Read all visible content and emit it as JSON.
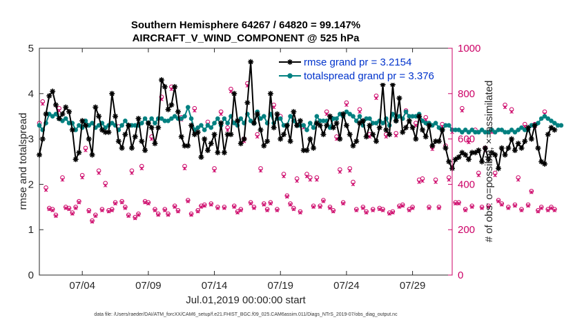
{
  "chart_data": {
    "type": "line",
    "title_line1": "Southern Hemisphere 64267 / 64820 = 99.147%",
    "title_line2": "AIRCRAFT_V_WIND_COMPONENT @ 525 hPa",
    "xlabel": "Jul.01,2019 00:00:00 start",
    "ylabel_left": "rmse and totalspread",
    "ylabel_right": "# of obs: o=possible; ×=assimilated",
    "xlim": [
      0.75,
      32.0
    ],
    "ylim_left": [
      0,
      5
    ],
    "ylim_right": [
      0,
      1000
    ],
    "x_ticks": [
      {
        "x": 4,
        "label": "07/04"
      },
      {
        "x": 9,
        "label": "07/09"
      },
      {
        "x": 14,
        "label": "07/14"
      },
      {
        "x": 19,
        "label": "07/19"
      },
      {
        "x": 24,
        "label": "07/24"
      },
      {
        "x": 29,
        "label": "07/29"
      }
    ],
    "y_ticks_left": [
      "0",
      "1",
      "2",
      "3",
      "4",
      "5"
    ],
    "y_ticks_right": [
      "0",
      "200",
      "400",
      "600",
      "800",
      "1000"
    ],
    "colors": {
      "rmse": "#000000",
      "spread": "#008080",
      "obs": "#cc0066",
      "legend_text": "#0033cc",
      "axis": "#262626"
    },
    "legend": {
      "position": "top-right",
      "entries": [
        "rmse grand pr = 3.2154",
        "totalspread grand pr = 3.376"
      ]
    },
    "series": [
      {
        "name": "rmse",
        "x0": 0.75,
        "dx": 0.25,
        "values": [
          2.65,
          3.0,
          3.55,
          3.95,
          4.05,
          3.75,
          3.45,
          3.55,
          3.7,
          3.6,
          3.2,
          2.55,
          2.7,
          3.4,
          3.3,
          3.0,
          2.65,
          3.7,
          3.5,
          3.2,
          3.15,
          3.15,
          4.0,
          3.5,
          2.95,
          2.8,
          3.1,
          3.3,
          2.8,
          3.05,
          3.45,
          2.95,
          2.75,
          3.35,
          3.25,
          2.9,
          3.25,
          4.3,
          4.15,
          3.65,
          3.75,
          4.15,
          3.6,
          3.05,
          2.85,
          2.85,
          3.3,
          3.1,
          3.15,
          2.6,
          3.0,
          2.75,
          2.9,
          3.1,
          2.7,
          3.35,
          2.7,
          3.1,
          3.1,
          4.0,
          3.4,
          2.9,
          3.0,
          3.8,
          4.7,
          3.35,
          3.55,
          3.2,
          2.85,
          2.95,
          4.0,
          3.25,
          3.55,
          3.0,
          3.1,
          3.3,
          2.95,
          3.6,
          3.3,
          3.4,
          2.75,
          2.75,
          3.0,
          2.8,
          3.35,
          3.3,
          3.1,
          3.3,
          3.5,
          3.25,
          3.35,
          3.0,
          3.55,
          3.3,
          3.1,
          2.85,
          2.95,
          3.35,
          3.4,
          3.05,
          3.3,
          3.1,
          2.95,
          3.25,
          4.2,
          3.2,
          3.1,
          4.2,
          3.4,
          3.9,
          3.15,
          3.25,
          3.4,
          3.25,
          3.0,
          3.5,
          3.2,
          3.05,
          3.3,
          2.85,
          2.95,
          2.95,
          3.2,
          2.8,
          2.5,
          2.35,
          2.55,
          2.6,
          2.7,
          2.65,
          2.55,
          2.7,
          2.7,
          2.75,
          2.5,
          2.8,
          2.55,
          2.7,
          2.65,
          2.35,
          2.8,
          2.65,
          2.8,
          3.0,
          2.75,
          2.9,
          2.8,
          2.95,
          3.25,
          3.0,
          3.3,
          2.8,
          2.5,
          2.45,
          3.1,
          3.25,
          3.2
        ]
      },
      {
        "name": "totalspread",
        "x0": 0.75,
        "dx": 0.25,
        "values": [
          3.3,
          3.2,
          3.35,
          3.55,
          3.5,
          3.55,
          3.45,
          3.4,
          3.45,
          3.35,
          3.35,
          3.2,
          3.3,
          3.25,
          3.4,
          3.3,
          3.35,
          3.25,
          3.3,
          3.35,
          3.25,
          3.3,
          3.35,
          3.3,
          3.2,
          3.3,
          3.4,
          3.3,
          3.3,
          3.3,
          3.3,
          3.35,
          3.45,
          3.35,
          3.45,
          3.35,
          3.45,
          3.45,
          3.4,
          3.4,
          3.45,
          3.5,
          3.45,
          3.45,
          3.5,
          3.7,
          3.45,
          3.2,
          3.25,
          3.3,
          3.2,
          3.3,
          3.25,
          3.35,
          3.45,
          3.3,
          3.45,
          3.35,
          3.5,
          3.35,
          3.3,
          3.45,
          3.35,
          3.55,
          3.4,
          3.35,
          3.6,
          3.45,
          3.5,
          3.35,
          3.55,
          3.35,
          3.45,
          3.45,
          3.3,
          3.3,
          3.5,
          3.4,
          3.3,
          3.3,
          3.3,
          3.2,
          3.35,
          3.25,
          3.5,
          3.4,
          3.4,
          3.4,
          3.25,
          3.45,
          3.45,
          3.55,
          3.5,
          3.6,
          3.55,
          3.5,
          3.4,
          3.5,
          3.3,
          3.45,
          3.45,
          3.35,
          3.35,
          3.4,
          3.35,
          3.45,
          3.3,
          3.55,
          3.4,
          3.5,
          3.45,
          3.6,
          3.5,
          3.5,
          3.5,
          3.55,
          3.4,
          3.35,
          3.35,
          3.3,
          3.35,
          3.25,
          3.2,
          3.3,
          3.3,
          3.2,
          3.2,
          3.2,
          3.15,
          3.2,
          3.15,
          3.2,
          3.15,
          3.15,
          3.2,
          3.15,
          3.15,
          3.2,
          3.15,
          3.2,
          3.2,
          3.15,
          3.15,
          3.2,
          3.15,
          3.2,
          3.25,
          3.2,
          3.2,
          3.3,
          3.3,
          3.35,
          3.45,
          3.5,
          3.45,
          3.4,
          3.35,
          3.3,
          3.3
        ]
      },
      {
        "name": "obs_possible",
        "axis": "right",
        "x0": 0.75,
        "dx": 0.25,
        "values": [
          670,
          765,
          385,
          295,
          290,
          265,
          735,
          430,
          300,
          295,
          275,
          300,
          325,
          440,
          560,
          285,
          240,
          265,
          460,
          290,
          405,
          285,
          290,
          320,
          655,
          325,
          300,
          265,
          460,
          255,
          270,
          480,
          325,
          320,
          610,
          290,
          270,
          785,
          290,
          270,
          830,
          305,
          285,
          695,
          480,
          330,
          270,
          735,
          285,
          305,
          310,
          675,
          315,
          470,
          300,
          720,
          300,
          650,
          820,
          305,
          280,
          290,
          600,
          845,
          320,
          300,
          620,
          470,
          315,
          290,
          320,
          750,
          290,
          700,
          445,
          350,
          315,
          295,
          425,
          280,
          660,
          445,
          430,
          305,
          430,
          305,
          330,
          720,
          300,
          285,
          610,
          465,
          320,
          760,
          470,
          410,
          290,
          730,
          300,
          280,
          620,
          290,
          790,
          295,
          290,
          620,
          275,
          280,
          625,
          305,
          310,
          725,
          290,
          300,
          670,
          420,
          425,
          695,
          300,
          565,
          420,
          300,
          665,
          570,
          430,
          640,
          320,
          320,
          735,
          290,
          595,
          305,
          640,
          450,
          300,
          560,
          305,
          640,
          450,
          330,
          315,
          750,
          300,
          730,
          310,
          430,
          290,
          665,
          310,
          370,
          665,
          285,
          300,
          720,
          290,
          300,
          290
        ]
      },
      {
        "name": "obs_assimilated",
        "axis": "right",
        "x0": 0.75,
        "dx": 0.25,
        "values": [
          660,
          755,
          375,
          290,
          285,
          260,
          725,
          420,
          295,
          290,
          270,
          295,
          320,
          430,
          550,
          280,
          235,
          260,
          450,
          285,
          395,
          280,
          285,
          315,
          645,
          320,
          295,
          260,
          450,
          250,
          265,
          470,
          320,
          315,
          600,
          285,
          265,
          775,
          285,
          265,
          820,
          300,
          280,
          685,
          470,
          325,
          265,
          725,
          280,
          300,
          305,
          665,
          310,
          460,
          295,
          710,
          295,
          640,
          810,
          300,
          275,
          285,
          590,
          835,
          315,
          295,
          610,
          460,
          310,
          285,
          315,
          740,
          285,
          690,
          435,
          345,
          310,
          290,
          415,
          275,
          650,
          435,
          420,
          300,
          420,
          300,
          325,
          710,
          295,
          280,
          600,
          455,
          315,
          750,
          460,
          400,
          285,
          720,
          295,
          275,
          610,
          285,
          780,
          290,
          285,
          610,
          270,
          275,
          615,
          300,
          305,
          715,
          285,
          295,
          660,
          410,
          415,
          685,
          295,
          555,
          410,
          295,
          655,
          560,
          420,
          630,
          315,
          315,
          725,
          285,
          585,
          300,
          630,
          440,
          295,
          550,
          300,
          630,
          440,
          325,
          310,
          740,
          295,
          720,
          305,
          420,
          285,
          655,
          305,
          365,
          655,
          280,
          295,
          710,
          285,
          295,
          285
        ]
      }
    ],
    "footer": "data file: /Users/raeder/DAI/ATM_forcXX/CAM6_setup/f.e21.FHIST_BGC.f09_025.CAM6assim.011/Diags_NTrS_2019-07/obs_diag_output.nc"
  }
}
